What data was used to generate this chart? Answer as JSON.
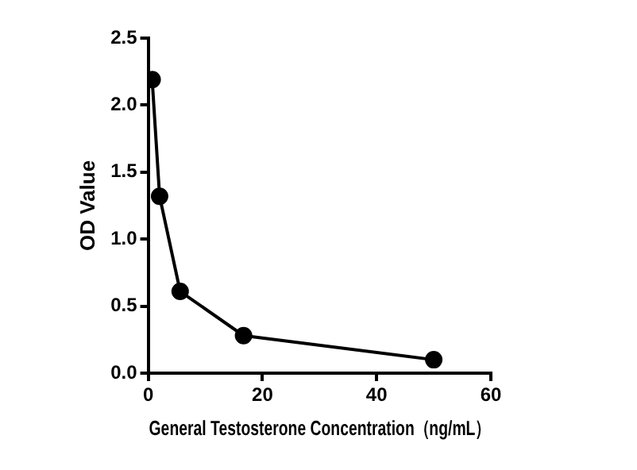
{
  "chart_data": {
    "type": "line",
    "xlabel": "General Testosterone Concentration（ng/mL）",
    "ylabel": "OD Value",
    "x": [
      0.7,
      2.0,
      5.6,
      16.7,
      50
    ],
    "series": [
      {
        "color": "#000000",
        "values": [
          2.19,
          1.32,
          0.61,
          0.28,
          0.1
        ]
      }
    ],
    "xlim": [
      0,
      60
    ],
    "xticks": [
      0,
      20,
      40,
      60
    ],
    "ylim": [
      0,
      2.5
    ],
    "yticks": [
      {
        "value": 0,
        "label": "0.0"
      },
      {
        "value": 0.5,
        "label": "0.5"
      },
      {
        "value": 1,
        "label": "1.0"
      },
      {
        "value": 1.5,
        "label": "1.5"
      },
      {
        "value": 2,
        "label": "2.0"
      },
      {
        "value": 2.5,
        "label": "2.5"
      }
    ],
    "grid": false,
    "legend": false,
    "marker": "circle",
    "line_style": "solid"
  }
}
